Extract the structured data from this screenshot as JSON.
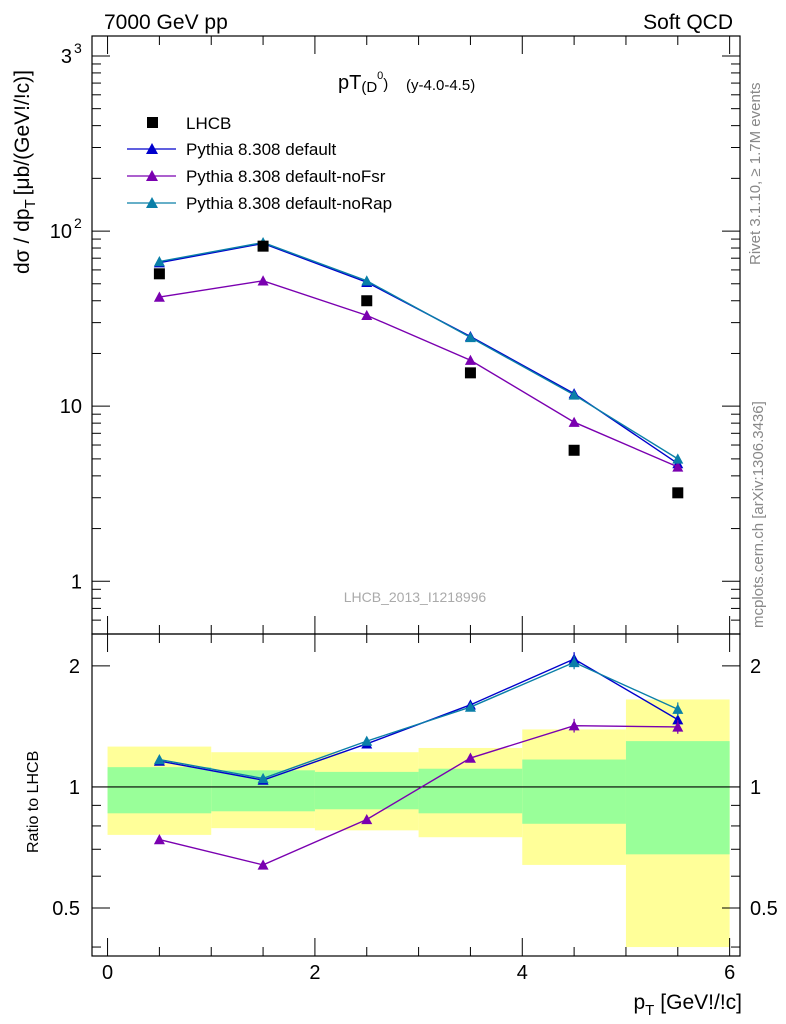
{
  "header": {
    "left": "7000 GeV pp",
    "right": "Soft QCD"
  },
  "side_labels": {
    "rivet": "Rivet 3.1.10, ≥ 1.7M events",
    "mcplots": "mcplots.cern.ch [arXiv:1306.3436]"
  },
  "chart_data": {
    "type": "scatter",
    "title_main": "pT",
    "title_sub": "(D",
    "title_sup": "0",
    "title_close": ")",
    "title_range": "(y-4.0-4.5)",
    "watermark": "LHCB_2013_I1218996",
    "ylabel": "dσ / dp",
    "ylabel_sub": "T",
    "ylabel_units": "[μb/(GeV!/!c)]",
    "xlabel": "p",
    "xlabel_sub": "T",
    "xlabel_units": "[GeV!/!c]",
    "ratio_ylabel": "Ratio to LHCB",
    "xlim": [
      -0.15,
      6.1
    ],
    "ylim": [
      0.5,
      1300
    ],
    "yscale": "log",
    "ratio_ylim": [
      0.38,
      2.4
    ],
    "ratio_yscale": "log",
    "x_ticks": [
      "0",
      "2",
      "4",
      "6"
    ],
    "main_y_ticks": [
      "1",
      "10",
      "10",
      "3"
    ],
    "main_y_tick_values": [
      1,
      10,
      100,
      1000
    ],
    "ratio_y_ticks": [
      "0.5",
      "1",
      "2"
    ],
    "ratio_y_tick_values": [
      0.5,
      1,
      2
    ],
    "x": [
      0.5,
      1.5,
      2.5,
      3.5,
      4.5,
      5.5
    ],
    "bin_edges": [
      0,
      1,
      2,
      3,
      4,
      5,
      6
    ],
    "data": {
      "name": "LHCB",
      "color": "#000000",
      "values": [
        57,
        82,
        40,
        15.5,
        5.6,
        3.2
      ]
    },
    "series": [
      {
        "name": "Pythia 8.308 default",
        "color": "#0000cc",
        "values": [
          66,
          85,
          51,
          25,
          11.8,
          4.7
        ],
        "ratio": [
          1.16,
          1.04,
          1.28,
          1.6,
          2.08,
          1.47
        ]
      },
      {
        "name": "Pythia 8.308 default-noFsr",
        "color": "#7a00b0",
        "values": [
          42,
          52,
          33,
          18.3,
          8.1,
          4.5
        ],
        "ratio": [
          0.74,
          0.64,
          0.83,
          1.18,
          1.42,
          1.41
        ]
      },
      {
        "name": "Pythia 8.308 default-noRap",
        "color": "#0a7fa8",
        "values": [
          67,
          86,
          52,
          24.7,
          11.6,
          5.0
        ],
        "ratio": [
          1.17,
          1.05,
          1.3,
          1.58,
          2.04,
          1.56
        ]
      }
    ],
    "band_inner": [
      [
        0.86,
        1.12
      ],
      [
        0.87,
        1.1
      ],
      [
        0.88,
        1.09
      ],
      [
        0.86,
        1.11
      ],
      [
        0.81,
        1.17
      ],
      [
        0.68,
        1.3
      ]
    ],
    "band_outer": [
      [
        0.76,
        1.26
      ],
      [
        0.79,
        1.22
      ],
      [
        0.78,
        1.22
      ],
      [
        0.75,
        1.25
      ],
      [
        0.64,
        1.39
      ],
      [
        0.4,
        1.65
      ]
    ],
    "colors": {
      "band_inner": "#99ff99",
      "band_outer": "#ffff99"
    }
  }
}
